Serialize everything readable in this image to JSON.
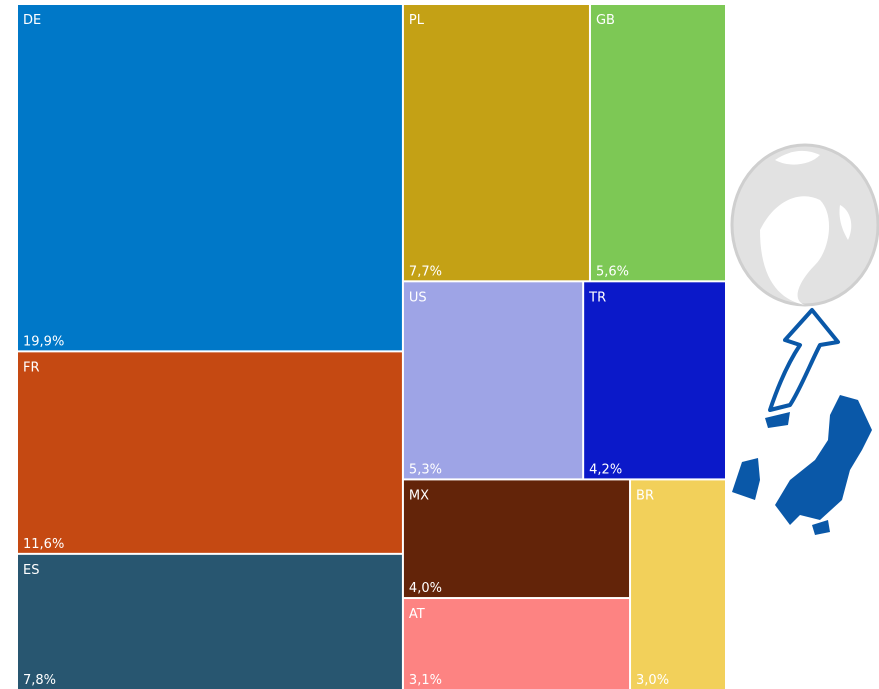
{
  "chart_data": {
    "type": "treemap",
    "categories": [
      "DE",
      "FR",
      "ES",
      "PL",
      "GB",
      "US",
      "TR",
      "MX",
      "AT",
      "BR"
    ],
    "values": [
      19.9,
      11.6,
      7.8,
      7.7,
      5.6,
      5.3,
      4.2,
      4.0,
      3.1,
      3.0
    ],
    "value_labels": [
      "19,9%",
      "11,6%",
      "7,8%",
      "7,7%",
      "5,6%",
      "5,3%",
      "4,2%",
      "4,0%",
      "3,1%",
      "3,0%"
    ],
    "colors": [
      "#0078c8",
      "#c54912",
      "#285670",
      "#c4a115",
      "#7dc855",
      "#9ea4e6",
      "#0b19c9",
      "#632409",
      "#fd8382",
      "#f2d05a"
    ]
  }
}
